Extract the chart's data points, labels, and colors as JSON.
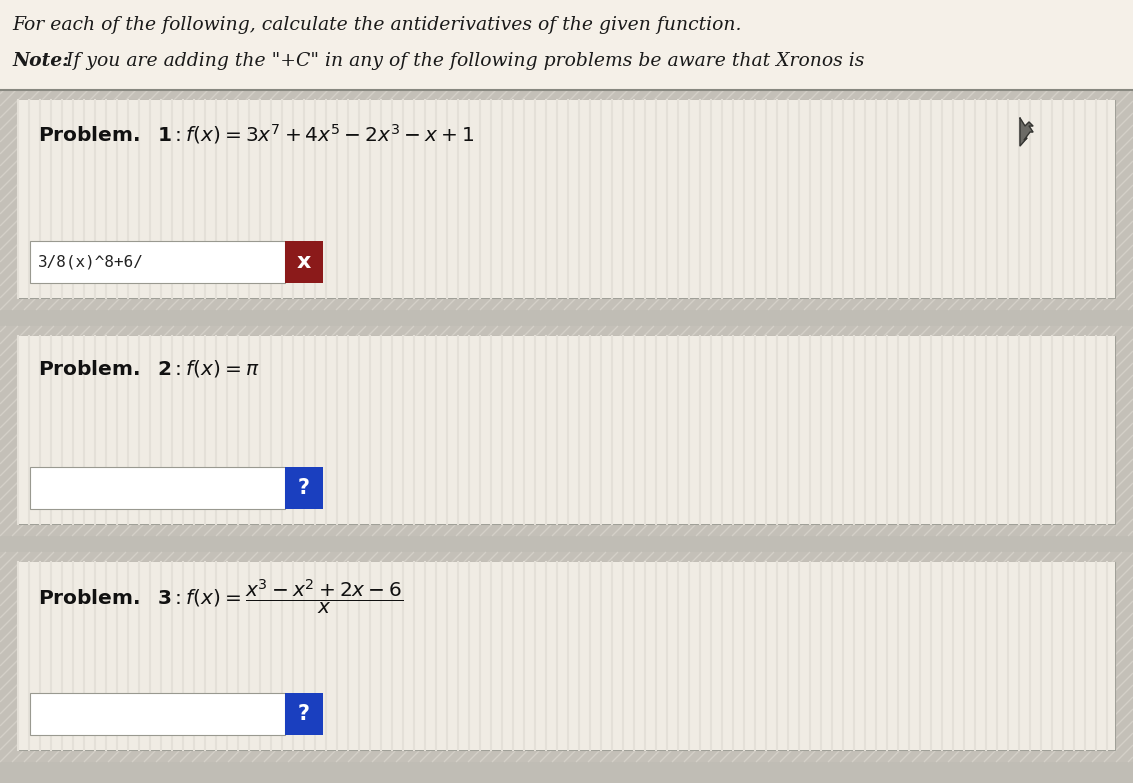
{
  "bg_color": "#b8b8b8",
  "page_bg": "#e8e4dc",
  "card_bg": "#f0ece4",
  "card_stripe_bg": "#e0dcd4",
  "white": "#ffffff",
  "panel_outer_bg": "#b0b0b0",
  "panel_inner_bg": "#d8d4cc",
  "title_line1": "For each of the following, calculate the antiderivatives of the given function.",
  "title_line2_bold": "Note:",
  "title_line2_rest": " If you are adding the \"+C\" in any of the following problems be aware that Xronos is",
  "problem1_input": "3/8(x)^8+6/",
  "problem1_btn_color": "#8b1a1a",
  "problem1_btn_text": "x",
  "problem2_btn_color": "#1a3fbf",
  "problem2_btn_text": "?",
  "problem3_btn_color": "#1a3fbf",
  "problem3_btn_text": "?",
  "figsize": [
    11.33,
    7.83
  ],
  "dpi": 100
}
